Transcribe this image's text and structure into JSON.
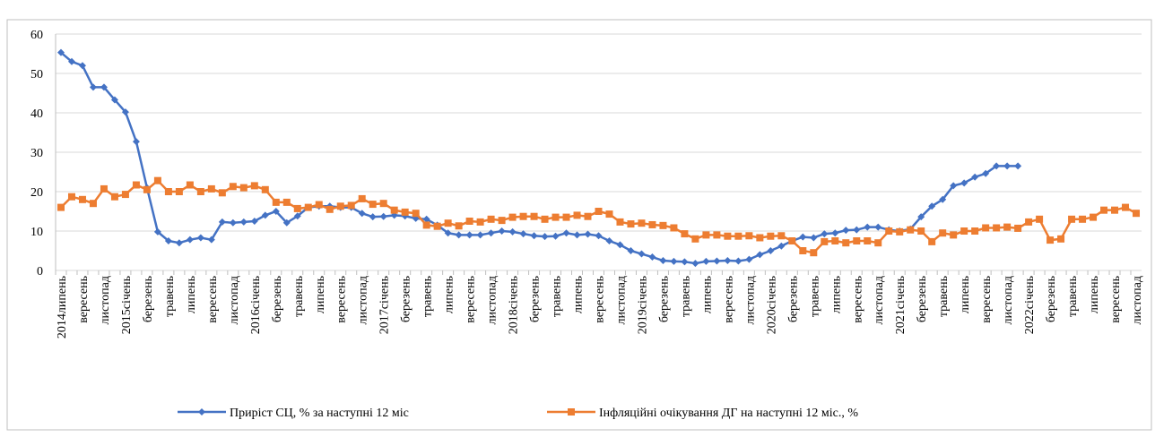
{
  "chart_data": {
    "type": "line",
    "categories": [
      "2014липень",
      null,
      "вересень",
      null,
      "листопад",
      null,
      "2015січень",
      null,
      "березень",
      null,
      "травень",
      null,
      "липень",
      null,
      "вересень",
      null,
      "листопад",
      null,
      "2016січень",
      null,
      "березень",
      null,
      "травень",
      null,
      "липень",
      null,
      "вересень",
      null,
      "листопад",
      null,
      "2017січень",
      null,
      "березень",
      null,
      "травень",
      null,
      "липень",
      null,
      "вересень",
      null,
      "листопад",
      null,
      "2018січень",
      null,
      "березень",
      null,
      "травень",
      null,
      "липень",
      null,
      "вересень",
      null,
      "листопад",
      null,
      "2019січень",
      null,
      "березень",
      null,
      "травень",
      null,
      "липень",
      null,
      "вересень",
      null,
      "листопад",
      null,
      "2020січень",
      null,
      "березень",
      null,
      "травень",
      null,
      "липень",
      null,
      "вересень",
      null,
      "листопад",
      null,
      "2021січень",
      null,
      "березень",
      null,
      "травень",
      null,
      "липень",
      null,
      "вересень",
      null,
      "листопад",
      null,
      "2022січень",
      null,
      "березень",
      null,
      "травень",
      null,
      "липень",
      null,
      "вересень",
      null,
      "листопад"
    ],
    "series": [
      {
        "name": "Приріст СЦ, % за наступні 12 міс",
        "color": "#4472c4",
        "marker": "diamond",
        "values": [
          55.3,
          53,
          52,
          46.5,
          46.5,
          43.3,
          40.2,
          32.7,
          21,
          9.8,
          7.5,
          7,
          7.8,
          8.3,
          7.8,
          12.3,
          12.1,
          12.3,
          12.5,
          14,
          15,
          12.1,
          13.8,
          16,
          16.3,
          16.3,
          16,
          16,
          14.5,
          13.6,
          13.7,
          14,
          13.8,
          13.2,
          13,
          11.5,
          9.5,
          9,
          9,
          9,
          9.5,
          10,
          9.8,
          9.3,
          8.8,
          8.6,
          8.7,
          9.5,
          9,
          9.2,
          8.8,
          7.5,
          6.5,
          5,
          4.2,
          3.4,
          2.5,
          2.3,
          2.2,
          1.8,
          2.3,
          2.4,
          2.5,
          2.4,
          2.8,
          4,
          5,
          6.2,
          7.5,
          8.5,
          8.3,
          9.3,
          9.5,
          10.2,
          10.3,
          11,
          11,
          10.3,
          10,
          10.5,
          13.6,
          16.3,
          18,
          21.5,
          22.2,
          23.7,
          24.6,
          26.5,
          26.5,
          26.5,
          null,
          null,
          null,
          null,
          null,
          null,
          null,
          null,
          null,
          null,
          null
        ]
      },
      {
        "name": "Інфляційні очікування ДГ на наступні 12 міс., %",
        "color": "#ed7d31",
        "marker": "square",
        "values": [
          16,
          18.7,
          18,
          17,
          20.7,
          18.7,
          19.3,
          21.7,
          20.5,
          22.8,
          20,
          20,
          21.7,
          20,
          20.7,
          19.7,
          21.3,
          21,
          21.5,
          20.5,
          17.3,
          17.3,
          15.7,
          16,
          16.7,
          15.5,
          16.3,
          16.5,
          18.2,
          16.8,
          17,
          15.3,
          14.8,
          14.5,
          11.5,
          11.2,
          12,
          11.3,
          12.5,
          12.3,
          13,
          12.7,
          13.5,
          13.7,
          13.7,
          13,
          13.5,
          13.5,
          14,
          13.7,
          15,
          14.3,
          12.3,
          11.8,
          12,
          11.6,
          11.4,
          10.8,
          9.3,
          8,
          9,
          9,
          8.7,
          8.7,
          8.8,
          8.3,
          8.7,
          8.8,
          7.5,
          5,
          4.5,
          7.3,
          7.5,
          7,
          7.5,
          7.5,
          7,
          10,
          9.8,
          10.3,
          10,
          7.3,
          9.5,
          9,
          10,
          10,
          10.8,
          10.8,
          11,
          10.7,
          12.3,
          13,
          7.7,
          8,
          13,
          13,
          13.5,
          15.3,
          15.3,
          16,
          14.5
        ]
      }
    ],
    "ylim": [
      0,
      60
    ],
    "yticks": [
      0,
      10,
      20,
      30,
      40,
      50,
      60
    ],
    "grid": true,
    "legend": "bottom"
  }
}
